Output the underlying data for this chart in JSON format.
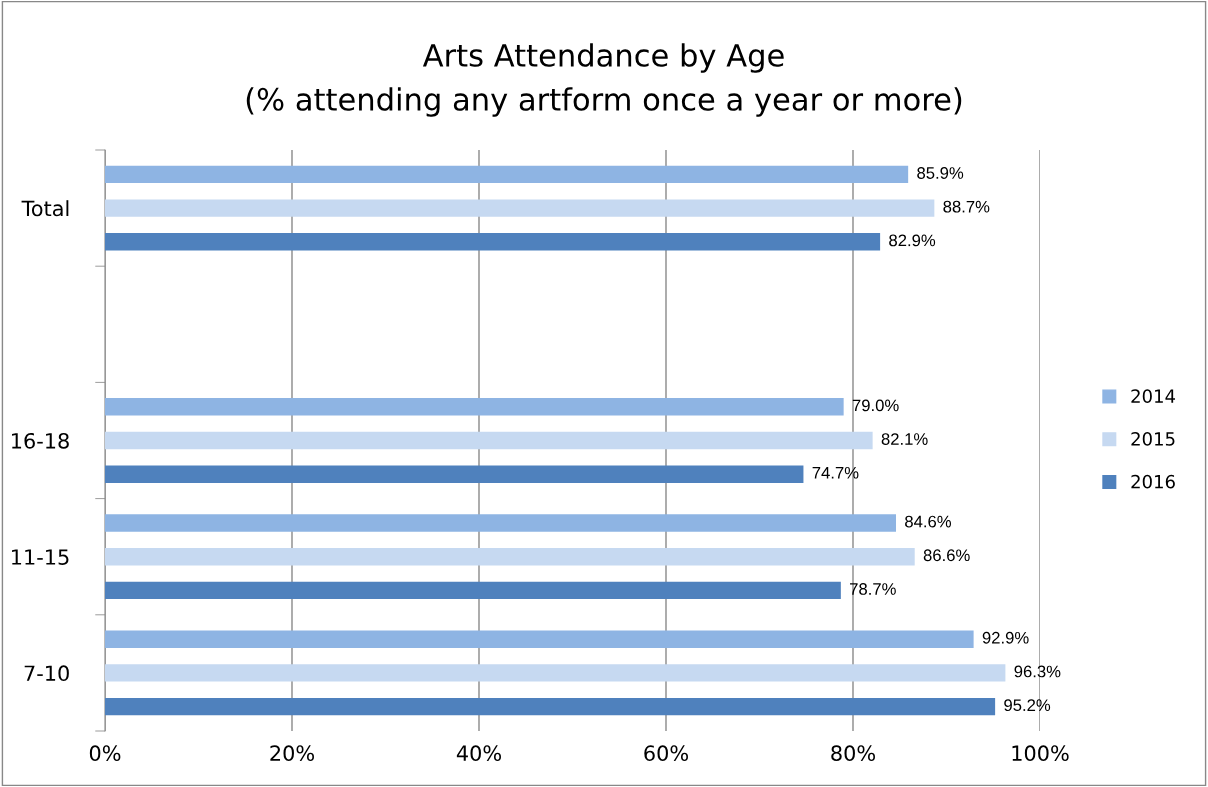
{
  "chart_data": {
    "type": "bar",
    "orientation": "horizontal",
    "title": "Arts Attendance by Age",
    "subtitle": "(% attending any artform once a year or more)",
    "categories": [
      "Total",
      null,
      "16-18",
      "11-15",
      "7-10"
    ],
    "series": [
      {
        "name": "2014",
        "color": "#8eb4e3",
        "values": [
          85.9,
          null,
          79.0,
          84.6,
          92.9
        ],
        "value_labels": [
          "85.9%",
          null,
          "79.0%",
          "84.6%",
          "92.9%"
        ]
      },
      {
        "name": "2015",
        "color": "#c6d9f1",
        "values": [
          88.7,
          null,
          82.1,
          86.6,
          96.3
        ],
        "value_labels": [
          "88.7%",
          null,
          "82.1%",
          "86.6%",
          "96.3%"
        ]
      },
      {
        "name": "2016",
        "color": "#4f81bd",
        "values": [
          82.9,
          null,
          74.7,
          78.7,
          95.2
        ],
        "value_labels": [
          "82.9%",
          null,
          "74.7%",
          "78.7%",
          "95.2%"
        ]
      }
    ],
    "xlim": [
      0,
      100
    ],
    "xticks": [
      {
        "value": 0,
        "label": "0%"
      },
      {
        "value": 20,
        "label": "20%"
      },
      {
        "value": 40,
        "label": "40%"
      },
      {
        "value": 60,
        "label": "60%"
      },
      {
        "value": 80,
        "label": "80%"
      },
      {
        "value": 100,
        "label": "100%"
      }
    ],
    "grid": "x",
    "legend": "right"
  }
}
